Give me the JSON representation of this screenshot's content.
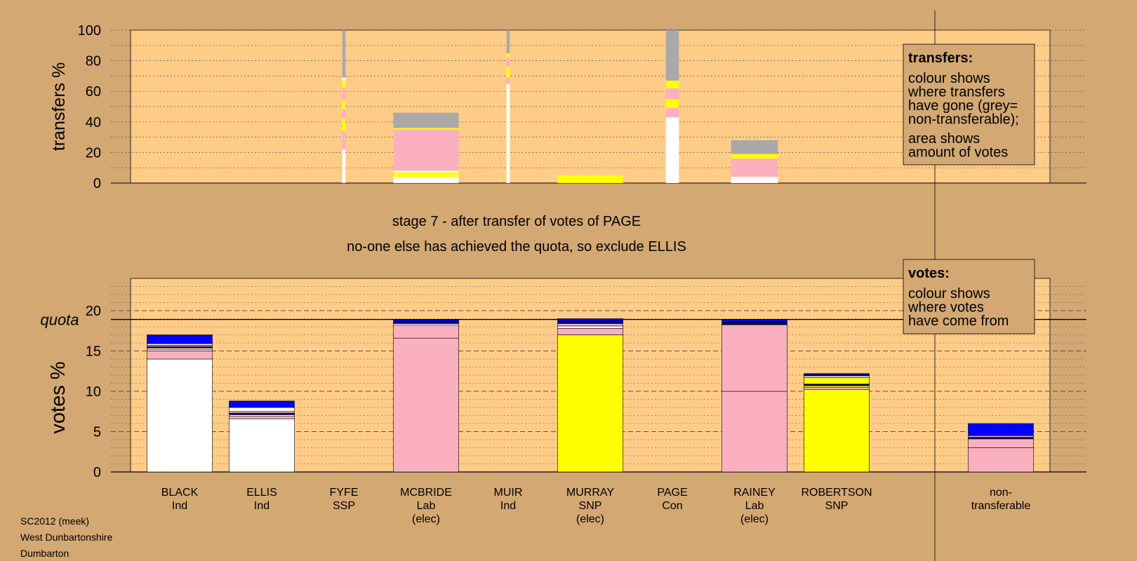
{
  "chart_data": [
    {
      "type": "bar",
      "stacked": true,
      "ylabel": "transfers %",
      "ylim": [
        0,
        100
      ],
      "yticks": [
        0,
        20,
        40,
        60,
        80,
        100
      ],
      "grid": true,
      "categories": [
        "BLACK",
        "ELLIS",
        "FYFE",
        "MCBRIDE",
        "MUIR",
        "MURRAY",
        "PAGE",
        "RAINEY",
        "ROBERTSON",
        "non-transferable"
      ],
      "bars": [
        {
          "category": "FYFE",
          "width_share": 0.05,
          "segments": [
            {
              "color": "#ffffff",
              "value": 22
            },
            {
              "color": "#fbb0c0",
              "value": 12
            },
            {
              "color": "#ffff00",
              "value": 8
            },
            {
              "color": "#fbb0c0",
              "value": 6
            },
            {
              "color": "#ffff00",
              "value": 6
            },
            {
              "color": "#fbb0c0",
              "value": 8
            },
            {
              "color": "#ffff00",
              "value": 5
            },
            {
              "color": "#ffffff",
              "value": 2
            },
            {
              "color": "#a9a9a9",
              "value": 31
            }
          ]
        },
        {
          "category": "MCBRIDE",
          "width_share": 1.0,
          "segments": [
            {
              "color": "#ffffff",
              "value": 4
            },
            {
              "color": "#ffff00",
              "value": 3
            },
            {
              "color": "#ffffff",
              "value": 1
            },
            {
              "color": "#fbb0c0",
              "value": 27
            },
            {
              "color": "#ffff00",
              "value": 1
            },
            {
              "color": "#a9a9a9",
              "value": 10
            }
          ]
        },
        {
          "category": "MUIR",
          "width_share": 0.05,
          "segments": [
            {
              "color": "#ffffff",
              "value": 65
            },
            {
              "color": "#fbb0c0",
              "value": 4
            },
            {
              "color": "#ffff00",
              "value": 7
            },
            {
              "color": "#fbb0c0",
              "value": 6
            },
            {
              "color": "#ffff00",
              "value": 3
            },
            {
              "color": "#a9a9a9",
              "value": 15
            }
          ]
        },
        {
          "category": "MURRAY",
          "width_share": 1.0,
          "segments": [
            {
              "color": "#ffff00",
              "value": 5
            }
          ]
        },
        {
          "category": "PAGE",
          "width_share": 0.2,
          "segments": [
            {
              "color": "#ffffff",
              "value": 43
            },
            {
              "color": "#fbb0c0",
              "value": 6
            },
            {
              "color": "#ffff00",
              "value": 6
            },
            {
              "color": "#fbb0c0",
              "value": 7
            },
            {
              "color": "#ffff00",
              "value": 5
            },
            {
              "color": "#a9a9a9",
              "value": 33
            }
          ]
        },
        {
          "category": "RAINEY",
          "width_share": 0.72,
          "segments": [
            {
              "color": "#ffffff",
              "value": 4
            },
            {
              "color": "#fbb0c0",
              "value": 12
            },
            {
              "color": "#ffff00",
              "value": 3
            },
            {
              "color": "#a9a9a9",
              "value": 9
            }
          ]
        }
      ],
      "legend": {
        "title": "transfers:",
        "lines": [
          "colour shows",
          "where transfers",
          "have gone (grey=",
          "non-transferable);"
        ],
        "lines2": [
          "area shows",
          "amount of votes"
        ]
      }
    },
    {
      "type": "bar",
      "stacked": true,
      "ylabel": "votes %",
      "ylim": [
        0,
        24
      ],
      "yticks": [
        0,
        5,
        10,
        15,
        20
      ],
      "quota": 18.9,
      "quota_label": "quota",
      "categories": [
        "BLACK",
        "ELLIS",
        "FYFE",
        "MCBRIDE",
        "MUIR",
        "MURRAY",
        "PAGE",
        "RAINEY",
        "ROBERTSON",
        "non-transferable"
      ],
      "stacks": [
        {
          "category": "BLACK",
          "segments": [
            {
              "color": "#ffffff",
              "value": 14.0
            },
            {
              "color": "#fbb0c0",
              "value": 1.0
            },
            {
              "color": "#ffffff",
              "value": 0.2
            },
            {
              "color": "#fbb0c0",
              "value": 0.2
            },
            {
              "color": "#000080",
              "value": 0.15
            },
            {
              "color": "#fbb0c0",
              "value": 0.15
            },
            {
              "color": "#ffffff",
              "value": 0.2
            },
            {
              "color": "#0000ff",
              "value": 1.1
            }
          ]
        },
        {
          "category": "ELLIS",
          "segments": [
            {
              "color": "#ffffff",
              "value": 6.6
            },
            {
              "color": "#fbb0c0",
              "value": 0.3
            },
            {
              "color": "#ffffff",
              "value": 0.2
            },
            {
              "color": "#000080",
              "value": 0.2
            },
            {
              "color": "#fbb0c0",
              "value": 0.2
            },
            {
              "color": "#ffffff",
              "value": 0.5
            },
            {
              "color": "#0000ff",
              "value": 0.8
            }
          ]
        },
        {
          "category": "FYFE",
          "segments": []
        },
        {
          "category": "MCBRIDE",
          "segments": [
            {
              "color": "#fbb0c0",
              "value": 16.6
            },
            {
              "color": "#fbb0c0",
              "value": 1.6
            },
            {
              "color": "#ffffff",
              "value": 0.2
            },
            {
              "color": "#000080",
              "value": 0.3
            },
            {
              "color": "#0000ff",
              "value": 0.2
            }
          ]
        },
        {
          "category": "MUIR",
          "segments": []
        },
        {
          "category": "MURRAY",
          "segments": [
            {
              "color": "#ffff00",
              "value": 17.0
            },
            {
              "color": "#fbb0c0",
              "value": 0.8
            },
            {
              "color": "#ffffff",
              "value": 0.3
            },
            {
              "color": "#fbb0c0",
              "value": 0.3
            },
            {
              "color": "#000080",
              "value": 0.3
            },
            {
              "color": "#0000ff",
              "value": 0.3
            }
          ]
        },
        {
          "category": "PAGE",
          "segments": []
        },
        {
          "category": "RAINEY",
          "segments": [
            {
              "color": "#fbb0c0",
              "value": 10.0
            },
            {
              "color": "#fbb0c0",
              "value": 8.2
            },
            {
              "color": "#ffffff",
              "value": 0.1
            },
            {
              "color": "#000080",
              "value": 0.3
            },
            {
              "color": "#0000ff",
              "value": 0.3
            }
          ]
        },
        {
          "category": "ROBERTSON",
          "segments": [
            {
              "color": "#ffff00",
              "value": 10.2
            },
            {
              "color": "#fbb0c0",
              "value": 0.3
            },
            {
              "color": "#ffff00",
              "value": 0.2
            },
            {
              "color": "#000080",
              "value": 0.2
            },
            {
              "color": "#ffff00",
              "value": 0.8
            },
            {
              "color": "#ffffff",
              "value": 0.2
            },
            {
              "color": "#000080",
              "value": 0.3
            }
          ]
        },
        {
          "category": "non-transferable",
          "segments": [
            {
              "color": "#fbb0c0",
              "value": 3.0
            },
            {
              "color": "#fbb0c0",
              "value": 1.1
            },
            {
              "color": "#000080",
              "value": 0.2
            },
            {
              "color": "#fbb0c0",
              "value": 0.2
            },
            {
              "color": "#0000ff",
              "value": 1.5
            }
          ]
        }
      ],
      "legend": {
        "title": "votes:",
        "lines": [
          "colour shows",
          "where votes",
          "have come from"
        ]
      }
    }
  ],
  "x_labels": [
    {
      "lines": [
        "BLACK",
        "Ind"
      ]
    },
    {
      "lines": [
        "ELLIS",
        "Ind"
      ]
    },
    {
      "lines": [
        "FYFE",
        "SSP"
      ]
    },
    {
      "lines": [
        "MCBRIDE",
        "Lab",
        "(elec)"
      ]
    },
    {
      "lines": [
        "MUIR",
        "Ind"
      ]
    },
    {
      "lines": [
        "MURRAY",
        "SNP",
        "(elec)"
      ]
    },
    {
      "lines": [
        "PAGE",
        "Con"
      ]
    },
    {
      "lines": [
        "RAINEY",
        "Lab",
        "(elec)"
      ]
    },
    {
      "lines": [
        "ROBERTSON",
        "SNP"
      ]
    },
    {
      "lines": [
        "non-",
        "transferable"
      ]
    }
  ],
  "stage_title": "stage 7 - after transfer of votes of PAGE",
  "stage_subtitle": "no-one else has achieved the quota, so exclude ELLIS",
  "footer": [
    "SC2012 (meek)",
    "West Dunbartonshire",
    "Dumbarton"
  ],
  "colors": {
    "background": "#d4a873",
    "plot_background": "#ffcc88",
    "white": "#ffffff",
    "pink": "#fbb0c0",
    "yellow": "#ffff00",
    "grey": "#a9a9a9",
    "navy": "#000080",
    "blue": "#0000ff"
  }
}
